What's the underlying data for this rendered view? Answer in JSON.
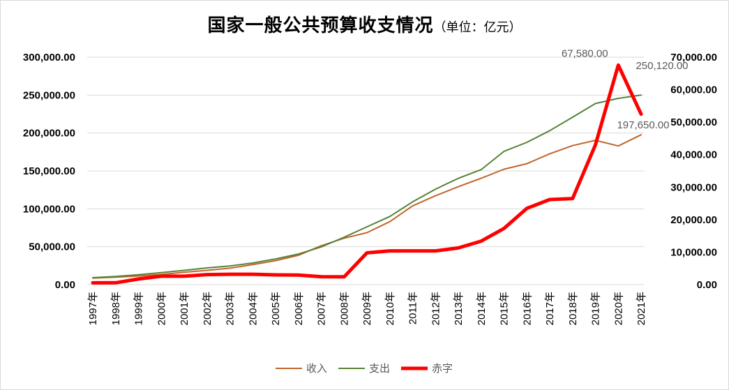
{
  "chart_data": {
    "type": "line",
    "title": "国家一般公共预算收支情况",
    "subtitle": "（单位：亿元）",
    "categories": [
      "1997年",
      "1998年",
      "1999年",
      "2000年",
      "2001年",
      "2002年",
      "2003年",
      "2004年",
      "2005年",
      "2006年",
      "2007年",
      "2008年",
      "2009年",
      "2010年",
      "2011年",
      "2012年",
      "2013年",
      "2014年",
      "2015年",
      "2016年",
      "2017年",
      "2018年",
      "2019年",
      "2020年",
      "2021年"
    ],
    "left_axis": {
      "ylim": [
        0,
        300000
      ],
      "ticks": [
        0,
        50000,
        100000,
        150000,
        200000,
        250000,
        300000
      ],
      "tick_labels": [
        "0.00",
        "50,000.00",
        "100,000.00",
        "150,000.00",
        "200,000.00",
        "250,000.00",
        "300,000.00"
      ]
    },
    "right_axis": {
      "ylim": [
        0,
        70000
      ],
      "ticks": [
        0,
        10000,
        20000,
        30000,
        40000,
        50000,
        60000,
        70000
      ],
      "tick_labels": [
        "0.00",
        "10,000.00",
        "20,000.00",
        "30,000.00",
        "40,000.00",
        "50,000.00",
        "60,000.00",
        "70,000.00"
      ]
    },
    "series": [
      {
        "name": "收入",
        "axis": "left",
        "color": "#c0652b",
        "width": 2,
        "values": [
          8651,
          9876,
          11444,
          13395,
          16386,
          18904,
          21715,
          26397,
          31649,
          38760,
          51322,
          61330,
          68518,
          83102,
          103874,
          117254,
          129210,
          140370,
          152269,
          159605,
          172593,
          183360,
          190390,
          182914,
          197650
        ]
      },
      {
        "name": "支出",
        "axis": "left",
        "color": "#548235",
        "width": 2,
        "values": [
          9234,
          10798,
          13188,
          15887,
          18903,
          22053,
          24650,
          28487,
          33930,
          40423,
          49781,
          62593,
          76300,
          89874,
          109248,
          125953,
          140212,
          151786,
          175878,
          187755,
          203085,
          220904,
          238858,
          245679,
          250120
        ]
      },
      {
        "name": "赤字",
        "axis": "right",
        "color": "#ff0000",
        "width": 5,
        "values": [
          560,
          580,
          1740,
          2600,
          2600,
          3100,
          3200,
          3200,
          3000,
          2950,
          2450,
          2400,
          9800,
          10400,
          10400,
          10400,
          11300,
          13400,
          17300,
          23500,
          26200,
          26500,
          43000,
          67580,
          52470
        ]
      }
    ],
    "annotations": [
      {
        "text": "67,580.00",
        "series": "赤字",
        "index": 23
      },
      {
        "text": "250,120.00",
        "series": "支出",
        "index": 24
      },
      {
        "text": "197,650.00",
        "series": "收入",
        "index": 24
      }
    ],
    "legend": {
      "position": "bottom",
      "items": [
        "收入",
        "支出",
        "赤字"
      ]
    },
    "grid": true
  }
}
